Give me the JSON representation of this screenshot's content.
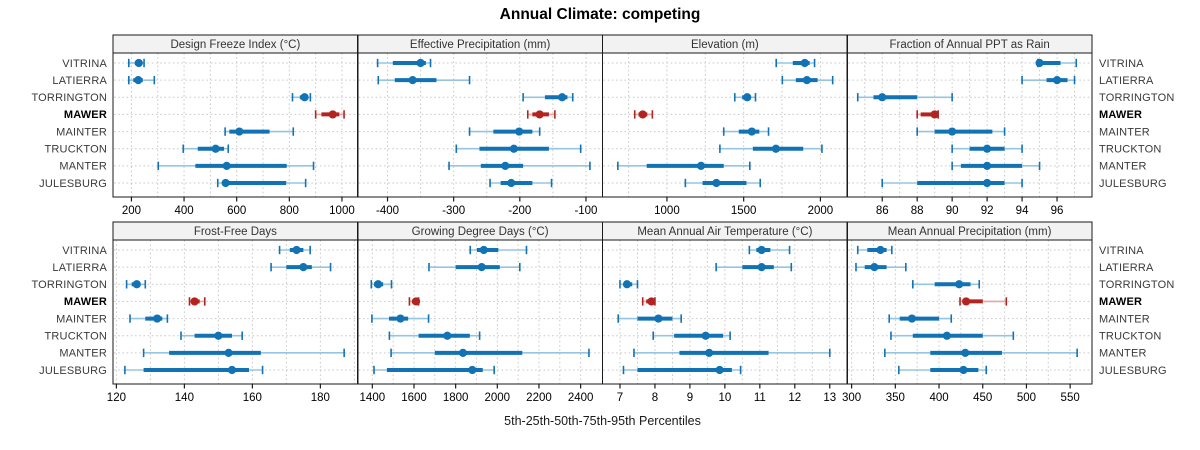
{
  "title": "Annual Climate: competing",
  "xlabel": "5th-25th-50th-75th-95th Percentiles",
  "categories": [
    "VITRINA",
    "LATIERRA",
    "TORRINGTON",
    "MAWER",
    "MAINTER",
    "TRUCKTON",
    "MANTER",
    "JULESBURG"
  ],
  "highlight_category": "MAWER",
  "percentile_levels": [
    "5th",
    "25th",
    "50th",
    "75th",
    "95th"
  ],
  "colors": {
    "normal_dark": "#1172b4",
    "normal_light": "#96c5e2",
    "highlight_dark": "#b2241f",
    "highlight_light": "#e6a5a1",
    "grid": "#c9c9c9",
    "strip_bg": "#f2f2f2",
    "panel_border": "#1a1a1a",
    "tick_color": "#1a1a1a"
  },
  "chart_data": [
    {
      "type": "scatter",
      "style": "percentile_interval",
      "title": "Design Freeze Index (°C)",
      "row": 0,
      "col": 0,
      "xlim": [
        130,
        1060
      ],
      "ticks": [
        200,
        400,
        600,
        800,
        1000
      ],
      "grid_step": 100,
      "series": [
        {
          "name": "VITRINA",
          "percentiles": [
            190,
            213,
            228,
            238,
            248
          ]
        },
        {
          "name": "LATIERRA",
          "percentiles": [
            190,
            207,
            226,
            243,
            287
          ]
        },
        {
          "name": "TORRINGTON",
          "percentiles": [
            812,
            840,
            858,
            872,
            880
          ]
        },
        {
          "name": "MAWER",
          "percentiles": [
            900,
            922,
            965,
            990,
            1008
          ]
        },
        {
          "name": "MAINTER",
          "percentiles": [
            556,
            572,
            610,
            725,
            815
          ]
        },
        {
          "name": "TRUCKTON",
          "percentiles": [
            397,
            452,
            520,
            552,
            568
          ]
        },
        {
          "name": "MANTER",
          "percentiles": [
            302,
            443,
            562,
            790,
            892
          ]
        },
        {
          "name": "JULESBURG",
          "percentiles": [
            528,
            545,
            558,
            788,
            862
          ]
        }
      ]
    },
    {
      "type": "scatter",
      "style": "percentile_interval",
      "title": "Effective Precipitation (mm)",
      "row": 0,
      "col": 1,
      "xlim": [
        -445,
        -75
      ],
      "ticks": [
        -400,
        -300,
        -200,
        -100
      ],
      "grid_step": 50,
      "series": [
        {
          "name": "VITRINA",
          "percentiles": [
            -415,
            -392,
            -350,
            -342,
            -335
          ]
        },
        {
          "name": "LATIERRA",
          "percentiles": [
            -414,
            -389,
            -362,
            -326,
            -276
          ]
        },
        {
          "name": "TORRINGTON",
          "percentiles": [
            -195,
            -162,
            -136,
            -128,
            -120
          ]
        },
        {
          "name": "MAWER",
          "percentiles": [
            -188,
            -181,
            -170,
            -156,
            -147
          ]
        },
        {
          "name": "MAINTER",
          "percentiles": [
            -276,
            -240,
            -201,
            -181,
            -170
          ]
        },
        {
          "name": "TRUCKTON",
          "percentiles": [
            -296,
            -261,
            -209,
            -156,
            -108
          ]
        },
        {
          "name": "MANTER",
          "percentiles": [
            -307,
            -259,
            -222,
            -195,
            -94
          ]
        },
        {
          "name": "JULESBURG",
          "percentiles": [
            -245,
            -229,
            -213,
            -181,
            -152
          ]
        }
      ]
    },
    {
      "type": "scatter",
      "style": "percentile_interval",
      "title": "Elevation (m)",
      "row": 0,
      "col": 2,
      "xlim": [
        580,
        2175
      ],
      "ticks": [
        1000,
        1500,
        2000
      ],
      "grid_step": 250,
      "series": [
        {
          "name": "VITRINA",
          "percentiles": [
            1712,
            1820,
            1898,
            1930,
            1962
          ]
        },
        {
          "name": "LATIERRA",
          "percentiles": [
            1752,
            1840,
            1912,
            1982,
            2080
          ]
        },
        {
          "name": "TORRINGTON",
          "percentiles": [
            1442,
            1490,
            1523,
            1548,
            1577
          ]
        },
        {
          "name": "MAWER",
          "percentiles": [
            790,
            815,
            842,
            872,
            905
          ]
        },
        {
          "name": "MAINTER",
          "percentiles": [
            1370,
            1468,
            1553,
            1602,
            1662
          ]
        },
        {
          "name": "TRUCKTON",
          "percentiles": [
            1345,
            1560,
            1710,
            1888,
            2010
          ]
        },
        {
          "name": "MANTER",
          "percentiles": [
            680,
            868,
            1222,
            1370,
            1540
          ]
        },
        {
          "name": "JULESBURG",
          "percentiles": [
            1120,
            1232,
            1322,
            1518,
            1608
          ]
        }
      ]
    },
    {
      "type": "scatter",
      "style": "percentile_interval",
      "title": "Fraction of Annual PPT as Rain",
      "row": 0,
      "col": 3,
      "xlim": [
        84,
        98
      ],
      "ticks": [
        86,
        88,
        90,
        92,
        94,
        96
      ],
      "grid_step": 1,
      "series": [
        {
          "name": "VITRINA",
          "percentiles": [
            94.9,
            95.0,
            95.0,
            96.2,
            97.1
          ]
        },
        {
          "name": "LATIERRA",
          "percentiles": [
            94.0,
            95.4,
            96.0,
            96.6,
            97.0
          ]
        },
        {
          "name": "TORRINGTON",
          "percentiles": [
            84.6,
            85.5,
            86.0,
            88.0,
            90.0
          ]
        },
        {
          "name": "MAWER",
          "percentiles": [
            88.0,
            88.2,
            89.0,
            89.1,
            89.2
          ]
        },
        {
          "name": "MAINTER",
          "percentiles": [
            88.0,
            89.0,
            90.0,
            92.3,
            93.0
          ]
        },
        {
          "name": "TRUCKTON",
          "percentiles": [
            90.0,
            91.0,
            92.0,
            93.0,
            94.0
          ]
        },
        {
          "name": "MANTER",
          "percentiles": [
            90.0,
            90.5,
            92.0,
            94.0,
            95.0
          ]
        },
        {
          "name": "JULESBURG",
          "percentiles": [
            86.0,
            88.0,
            92.0,
            93.0,
            94.0
          ]
        }
      ]
    },
    {
      "type": "scatter",
      "style": "percentile_interval",
      "title": "Frost-Free Days",
      "row": 1,
      "col": 0,
      "xlim": [
        119,
        191
      ],
      "ticks": [
        120,
        140,
        160,
        180
      ],
      "grid_step": 10,
      "series": [
        {
          "name": "VITRINA",
          "percentiles": [
            168,
            171,
            173,
            175,
            177
          ]
        },
        {
          "name": "LATIERRA",
          "percentiles": [
            165.5,
            170,
            175,
            177.5,
            183
          ]
        },
        {
          "name": "TORRINGTON",
          "percentiles": [
            123,
            124.5,
            126,
            127,
            128.5
          ]
        },
        {
          "name": "MAWER",
          "percentiles": [
            141.5,
            142,
            143,
            144.5,
            146
          ]
        },
        {
          "name": "MAINTER",
          "percentiles": [
            124,
            128.5,
            132,
            133.5,
            135
          ]
        },
        {
          "name": "TRUCKTON",
          "percentiles": [
            139,
            143,
            150,
            154,
            157
          ]
        },
        {
          "name": "MANTER",
          "percentiles": [
            128,
            135.5,
            153,
            162.5,
            187
          ]
        },
        {
          "name": "JULESBURG",
          "percentiles": [
            122.5,
            128,
            154,
            159,
            163
          ]
        }
      ]
    },
    {
      "type": "scatter",
      "style": "percentile_interval",
      "title": "Growing Degree Days (°C)",
      "row": 1,
      "col": 1,
      "xlim": [
        1330,
        2505
      ],
      "ticks": [
        1400,
        1600,
        1800,
        2000,
        2200,
        2400
      ],
      "grid_step": 100,
      "series": [
        {
          "name": "VITRINA",
          "percentiles": [
            1870,
            1902,
            1935,
            2005,
            2140
          ]
        },
        {
          "name": "LATIERRA",
          "percentiles": [
            1672,
            1800,
            1925,
            2012,
            2108
          ]
        },
        {
          "name": "TORRINGTON",
          "percentiles": [
            1395,
            1408,
            1428,
            1452,
            1492
          ]
        },
        {
          "name": "MAWER",
          "percentiles": [
            1578,
            1590,
            1610,
            1615,
            1622
          ]
        },
        {
          "name": "MAINTER",
          "percentiles": [
            1398,
            1480,
            1535,
            1572,
            1670
          ]
        },
        {
          "name": "TRUCKTON",
          "percentiles": [
            1482,
            1622,
            1760,
            1868,
            1915
          ]
        },
        {
          "name": "MANTER",
          "percentiles": [
            1490,
            1700,
            1835,
            2120,
            2440
          ]
        },
        {
          "name": "JULESBURG",
          "percentiles": [
            1408,
            1470,
            1880,
            1930,
            1985
          ]
        }
      ]
    },
    {
      "type": "scatter",
      "style": "percentile_interval",
      "title": "Mean Annual Air Temperature (°C)",
      "row": 1,
      "col": 2,
      "xlim": [
        6.5,
        13.5
      ],
      "ticks": [
        7,
        8,
        9,
        10,
        11,
        12,
        13
      ],
      "grid_step": 0.5,
      "series": [
        {
          "name": "VITRINA",
          "percentiles": [
            10.7,
            10.9,
            11.05,
            11.3,
            11.85
          ]
        },
        {
          "name": "LATIERRA",
          "percentiles": [
            9.75,
            10.5,
            11.05,
            11.4,
            11.9
          ]
        },
        {
          "name": "TORRINGTON",
          "percentiles": [
            7.0,
            7.1,
            7.2,
            7.35,
            7.5
          ]
        },
        {
          "name": "MAWER",
          "percentiles": [
            7.65,
            7.75,
            7.9,
            7.95,
            8.0
          ]
        },
        {
          "name": "MAINTER",
          "percentiles": [
            6.95,
            7.5,
            8.1,
            8.5,
            8.75
          ]
        },
        {
          "name": "TRUCKTON",
          "percentiles": [
            7.95,
            8.55,
            9.45,
            9.95,
            10.15
          ]
        },
        {
          "name": "MANTER",
          "percentiles": [
            7.4,
            8.7,
            9.55,
            11.25,
            13.0
          ]
        },
        {
          "name": "JULESBURG",
          "percentiles": [
            7.1,
            7.5,
            9.85,
            10.2,
            10.45
          ]
        }
      ]
    },
    {
      "type": "scatter",
      "style": "percentile_interval",
      "title": "Mean Annual Precipitation (mm)",
      "row": 1,
      "col": 3,
      "xlim": [
        295,
        575
      ],
      "ticks": [
        300,
        350,
        400,
        450,
        500,
        550
      ],
      "grid_step": 25,
      "series": [
        {
          "name": "VITRINA",
          "percentiles": [
            307,
            318,
            333,
            340,
            346
          ]
        },
        {
          "name": "LATIERRA",
          "percentiles": [
            305,
            315,
            326,
            340,
            362
          ]
        },
        {
          "name": "TORRINGTON",
          "percentiles": [
            370,
            395,
            423,
            436,
            446
          ]
        },
        {
          "name": "MAWER",
          "percentiles": [
            424,
            427,
            431,
            450,
            477
          ]
        },
        {
          "name": "MAINTER",
          "percentiles": [
            343,
            355,
            369,
            400,
            414
          ]
        },
        {
          "name": "TRUCKTON",
          "percentiles": [
            345,
            370,
            409,
            450,
            485
          ]
        },
        {
          "name": "MANTER",
          "percentiles": [
            338,
            390,
            430,
            472,
            558
          ]
        },
        {
          "name": "JULESBURG",
          "percentiles": [
            354,
            390,
            428,
            445,
            454
          ]
        }
      ]
    }
  ]
}
